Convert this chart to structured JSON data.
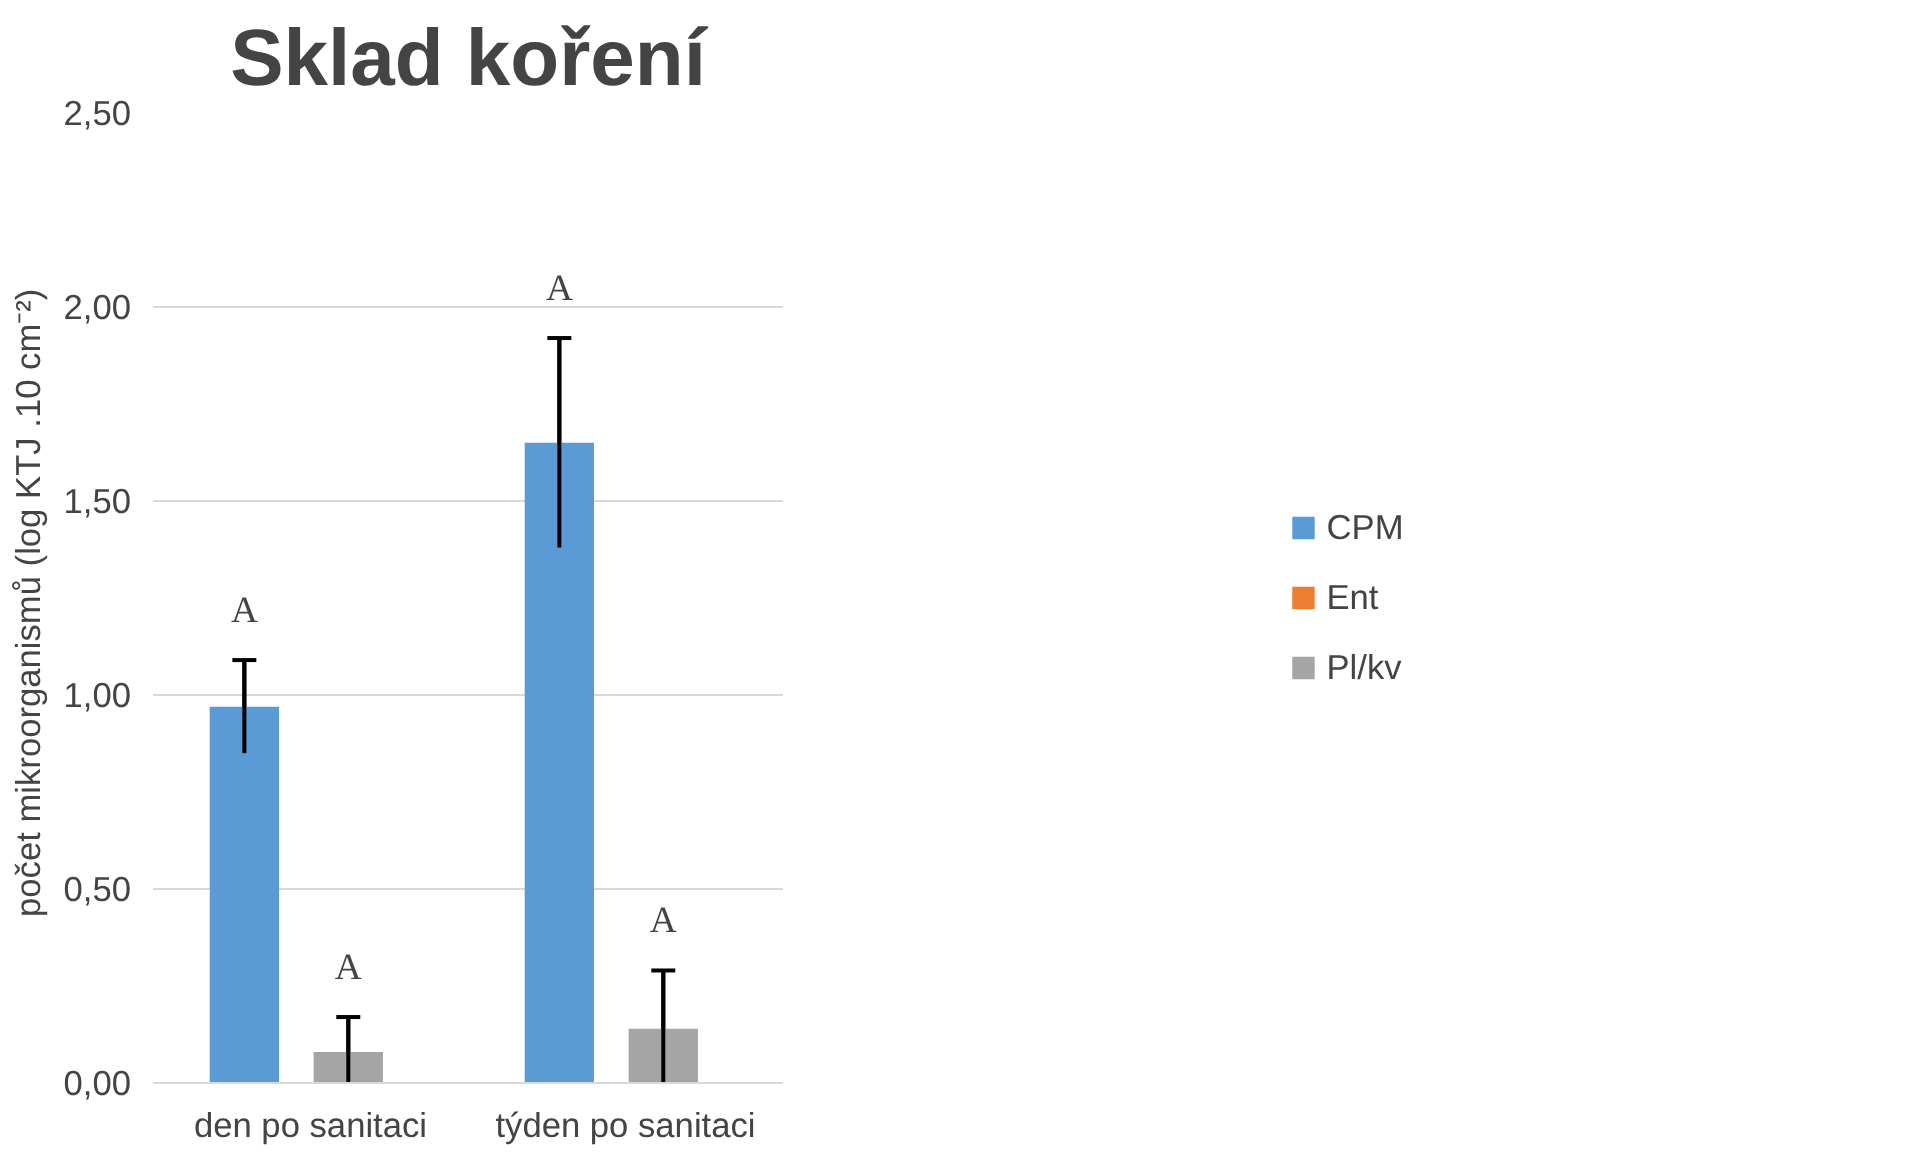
{
  "chart_data": {
    "type": "bar",
    "title": "Sklad koření",
    "ylabel": "počet mikroorganismů (log  KTJ .10 cm⁻²)",
    "categories": [
      "den po sanitaci",
      "týden po sanitaci"
    ],
    "series": [
      {
        "name": "CPM",
        "color": "#5b9bd5",
        "values": [
          0.97,
          1.65
        ],
        "errors": [
          0.12,
          0.27
        ],
        "value_labels": [
          "A",
          "A"
        ]
      },
      {
        "name": "Ent",
        "color": "#ed7d31",
        "values": [
          0,
          0
        ]
      },
      {
        "name": "Pl/kv",
        "color": "#a5a5a5",
        "values": [
          0.08,
          0.14
        ],
        "errors": [
          0.09,
          0.15
        ],
        "value_labels": [
          "A",
          "A"
        ]
      }
    ],
    "ylim": [
      0,
      2.5
    ],
    "yticks": [
      {
        "value": 0,
        "label": "0,00"
      },
      {
        "value": 0.5,
        "label": "0,50"
      },
      {
        "value": 1,
        "label": "1,00"
      },
      {
        "value": 1.5,
        "label": "1,50"
      },
      {
        "value": 2,
        "label": "2,00"
      },
      {
        "value": 2.5,
        "label": "2,50"
      }
    ],
    "grid": "y",
    "legend": "right"
  }
}
